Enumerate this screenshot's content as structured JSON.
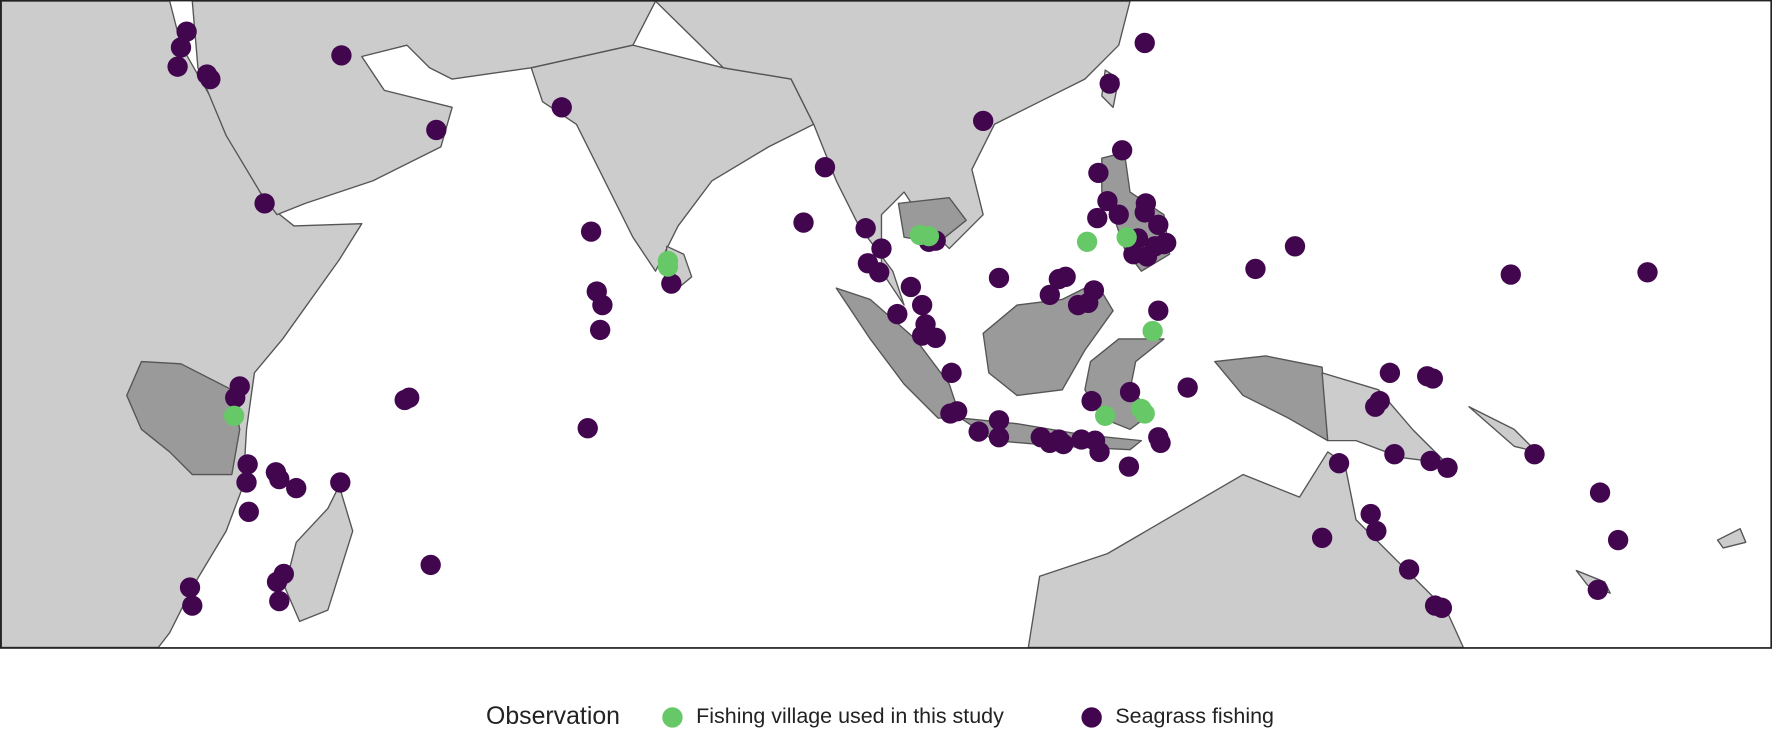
{
  "legend": {
    "title": "Observation",
    "items": [
      {
        "label": "Fishing village used in this study",
        "color": "#66c866"
      },
      {
        "label": "Seagrass fishing",
        "color": "#42064f"
      }
    ]
  }
}
